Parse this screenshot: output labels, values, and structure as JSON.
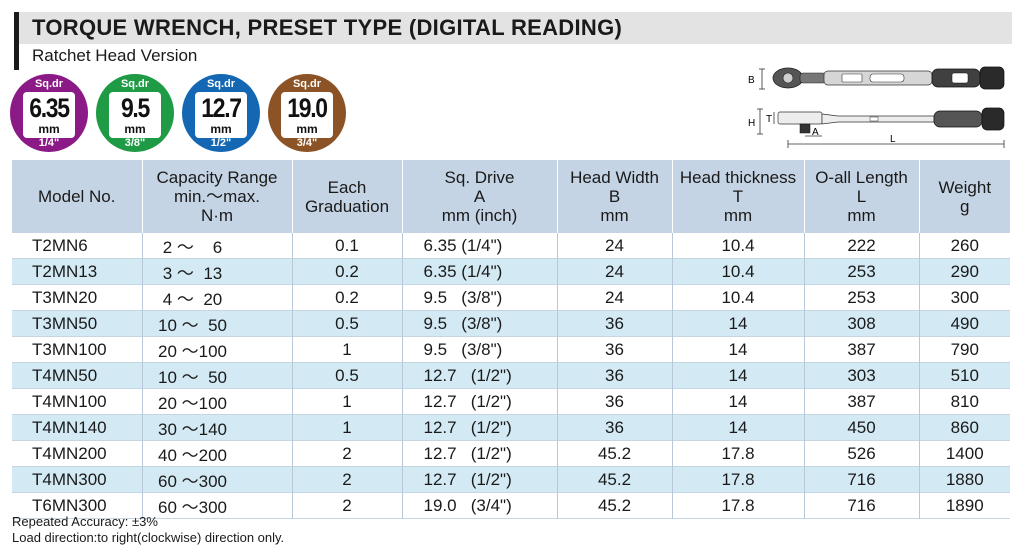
{
  "header": {
    "title": "TORQUE WRENCH, PRESET TYPE (DIGITAL READING)",
    "subtitle": "Ratchet Head Version"
  },
  "badges": [
    {
      "label": "Sq.dr",
      "value": "6.35",
      "unit": "mm",
      "inch": "1/4\"",
      "color": "#8b1a86"
    },
    {
      "label": "Sq.dr",
      "value": "9.5",
      "unit": "mm",
      "inch": "3/8\"",
      "color": "#1f9a45"
    },
    {
      "label": "Sq.dr",
      "value": "12.7",
      "unit": "mm",
      "inch": "1/2\"",
      "color": "#1468b3"
    },
    {
      "label": "Sq.dr",
      "value": "19.0",
      "unit": "mm",
      "inch": "3/4\"",
      "color": "#8c5426"
    }
  ],
  "diagram": {
    "labels": {
      "b": "B",
      "h": "H",
      "t": "T",
      "a": "A",
      "l": "L"
    }
  },
  "table": {
    "headers": [
      [
        "Model No."
      ],
      [
        "Capacity Range",
        "min.～max.",
        "N·m"
      ],
      [
        "Each",
        "Graduation"
      ],
      [
        "Sq. Drive",
        "A",
        "mm (inch)"
      ],
      [
        "Head Width",
        "B",
        "mm"
      ],
      [
        "Head thickness",
        "T",
        "mm"
      ],
      [
        "O-all Length",
        "L",
        "mm"
      ],
      [
        "Weight",
        "g"
      ]
    ],
    "rows": [
      {
        "model": "T2MN6",
        "capacity": " 2 ～    6",
        "graduation": "0.1",
        "sqdrive": "6.35 (1/4\")",
        "width": "24",
        "thickness": "10.4",
        "length": "222",
        "weight": "260"
      },
      {
        "model": "T2MN13",
        "capacity": " 3 ～  13",
        "graduation": "0.2",
        "sqdrive": "6.35 (1/4\")",
        "width": "24",
        "thickness": "10.4",
        "length": "253",
        "weight": "290"
      },
      {
        "model": "T3MN20",
        "capacity": " 4 ～  20",
        "graduation": "0.2",
        "sqdrive": "9.5   (3/8\")",
        "width": "24",
        "thickness": "10.4",
        "length": "253",
        "weight": "300"
      },
      {
        "model": "T3MN50",
        "capacity": "10 ～  50",
        "graduation": "0.5",
        "sqdrive": "9.5   (3/8\")",
        "width": "36",
        "thickness": "14",
        "length": "308",
        "weight": "490"
      },
      {
        "model": "T3MN100",
        "capacity": "20 ～100",
        "graduation": "1",
        "sqdrive": "9.5   (3/8\")",
        "width": "36",
        "thickness": "14",
        "length": "387",
        "weight": "790"
      },
      {
        "model": "T4MN50",
        "capacity": "10 ～  50",
        "graduation": "0.5",
        "sqdrive": "12.7   (1/2\")",
        "width": "36",
        "thickness": "14",
        "length": "303",
        "weight": "510"
      },
      {
        "model": "T4MN100",
        "capacity": "20 ～100",
        "graduation": "1",
        "sqdrive": "12.7   (1/2\")",
        "width": "36",
        "thickness": "14",
        "length": "387",
        "weight": "810"
      },
      {
        "model": "T4MN140",
        "capacity": "30 ～140",
        "graduation": "1",
        "sqdrive": "12.7   (1/2\")",
        "width": "36",
        "thickness": "14",
        "length": "450",
        "weight": "860"
      },
      {
        "model": "T4MN200",
        "capacity": "40 ～200",
        "graduation": "2",
        "sqdrive": "12.7   (1/2\")",
        "width": "45.2",
        "thickness": "17.8",
        "length": "526",
        "weight": "1400"
      },
      {
        "model": "T4MN300",
        "capacity": "60 ～300",
        "graduation": "2",
        "sqdrive": "12.7   (1/2\")",
        "width": "45.2",
        "thickness": "17.8",
        "length": "716",
        "weight": "1880"
      },
      {
        "model": "T6MN300",
        "capacity": "60 ～300",
        "graduation": "2",
        "sqdrive": "19.0   (3/4\")",
        "width": "45.2",
        "thickness": "17.8",
        "length": "716",
        "weight": "1890"
      }
    ]
  },
  "notes": {
    "accuracy": "Repeated Accuracy: ±3%",
    "direction": "Load direction:to right(clockwise) direction only."
  }
}
